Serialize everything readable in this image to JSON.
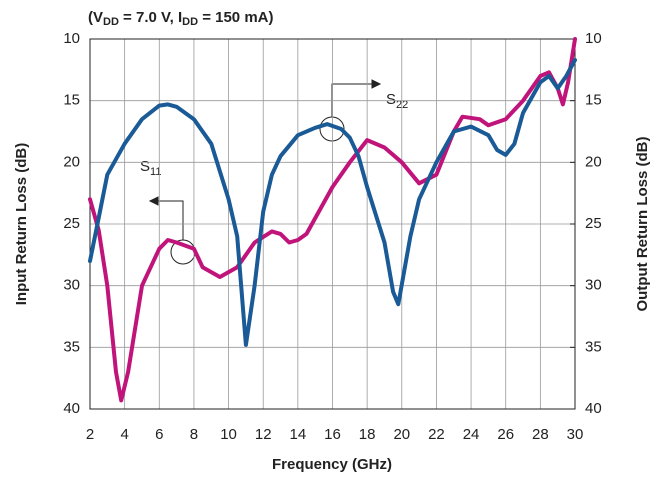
{
  "chart_data": {
    "type": "line",
    "title": [
      "(V",
      "DD",
      " = 7.0 V,  I",
      "DD",
      " = 150 mA)"
    ],
    "xlabel": "Frequency (GHz)",
    "ylabel": "Input Return Loss (dB)",
    "y2label": "Output Return Loss (dB)",
    "xlim": [
      2,
      30
    ],
    "xticks": [
      2,
      4,
      6,
      8,
      10,
      12,
      14,
      16,
      18,
      20,
      22,
      24,
      26,
      28,
      30
    ],
    "ylim": [
      10,
      40
    ],
    "yticks": [
      10,
      15,
      20,
      25,
      30,
      35,
      40
    ],
    "y2lim": [
      10,
      40
    ],
    "y2ticks": [
      10,
      15,
      20,
      25,
      30,
      35,
      40
    ],
    "invert_y": true,
    "grid": true,
    "annotations": [
      [
        "S",
        "11"
      ],
      [
        "S",
        "22"
      ]
    ],
    "series": [
      {
        "color": "#c0147a",
        "x": [
          2,
          2.5,
          3,
          3.5,
          3.8,
          4.2,
          5,
          6,
          6.5,
          7,
          8,
          8.5,
          9.5,
          10.5,
          11.5,
          12.5,
          13,
          13.5,
          14,
          14.5,
          16,
          17,
          18,
          19,
          20,
          21,
          22,
          23,
          23.5,
          24.5,
          25,
          26,
          27,
          28,
          28.5,
          29,
          29.3,
          29.6,
          30
        ],
        "values": [
          23,
          25.5,
          30,
          37,
          39.3,
          37,
          30,
          27,
          26.3,
          26.5,
          27,
          28.5,
          29.3,
          28.5,
          26.5,
          25.6,
          25.8,
          26.5,
          26.3,
          25.8,
          22,
          20,
          18.2,
          18.8,
          20,
          21.7,
          21,
          17.5,
          16.3,
          16.5,
          17,
          16.5,
          15,
          13,
          12.7,
          14,
          15.3,
          13.5,
          10
        ]
      },
      {
        "color": "#1a5a96",
        "x": [
          2,
          2.5,
          3,
          4,
          5,
          6,
          6.5,
          7,
          8,
          9,
          10,
          10.5,
          11,
          11.5,
          12,
          12.5,
          13,
          14,
          15,
          15.7,
          16.5,
          17,
          17.5,
          18,
          19,
          19.5,
          19.8,
          20.5,
          21,
          22,
          23,
          24,
          25,
          25.5,
          26,
          26.5,
          27,
          28,
          28.5,
          29,
          29.5,
          30
        ],
        "values": [
          28,
          24.5,
          21,
          18.5,
          16.5,
          15.4,
          15.3,
          15.5,
          16.5,
          18.5,
          23,
          26,
          34.8,
          30,
          24,
          21,
          19.5,
          17.8,
          17.2,
          16.9,
          17.3,
          18,
          19.5,
          22,
          26.5,
          30.5,
          31.5,
          26,
          23,
          20,
          17.5,
          17.1,
          17.8,
          19,
          19.4,
          18.5,
          16,
          13.5,
          13,
          14,
          13,
          11.7
        ]
      }
    ]
  }
}
